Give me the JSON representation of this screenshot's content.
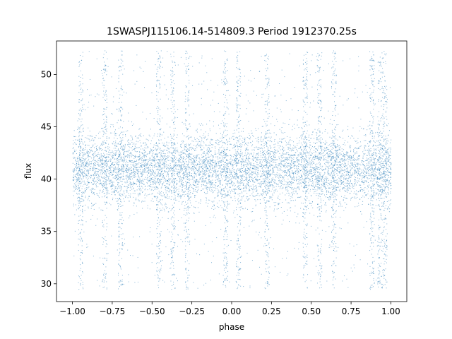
{
  "chart_data": {
    "type": "scatter",
    "title": "1SWASPJ115106.14-514809.3 Period 1912370.25s",
    "xlabel": "phase",
    "ylabel": "flux",
    "xlim": [
      -1.1,
      1.1
    ],
    "ylim": [
      28.3,
      53.2
    ],
    "xticks": [
      -1.0,
      -0.75,
      -0.5,
      -0.25,
      0.0,
      0.25,
      0.5,
      0.75,
      1.0
    ],
    "xtick_labels": [
      "−1.00",
      "−0.75",
      "−0.50",
      "−0.25",
      "0.00",
      "0.25",
      "0.50",
      "0.75",
      "1.00"
    ],
    "yticks": [
      30,
      35,
      40,
      45,
      50
    ],
    "ytick_labels": [
      "30",
      "35",
      "40",
      "45",
      "50"
    ],
    "grid": false,
    "legend": "none",
    "marker_color": "#1f77b4",
    "x_range": [
      -1.0,
      1.0
    ],
    "core_band": [
      37.5,
      44.5
    ],
    "median_flux": 41.0,
    "flux_extent": [
      29.5,
      52.3
    ],
    "spike_phases": [
      -0.95,
      -0.8,
      -0.7,
      -0.46,
      -0.37,
      -0.28,
      -0.04,
      0.04,
      0.22,
      0.46,
      0.55,
      0.64,
      0.88,
      0.93,
      0.96
    ]
  }
}
